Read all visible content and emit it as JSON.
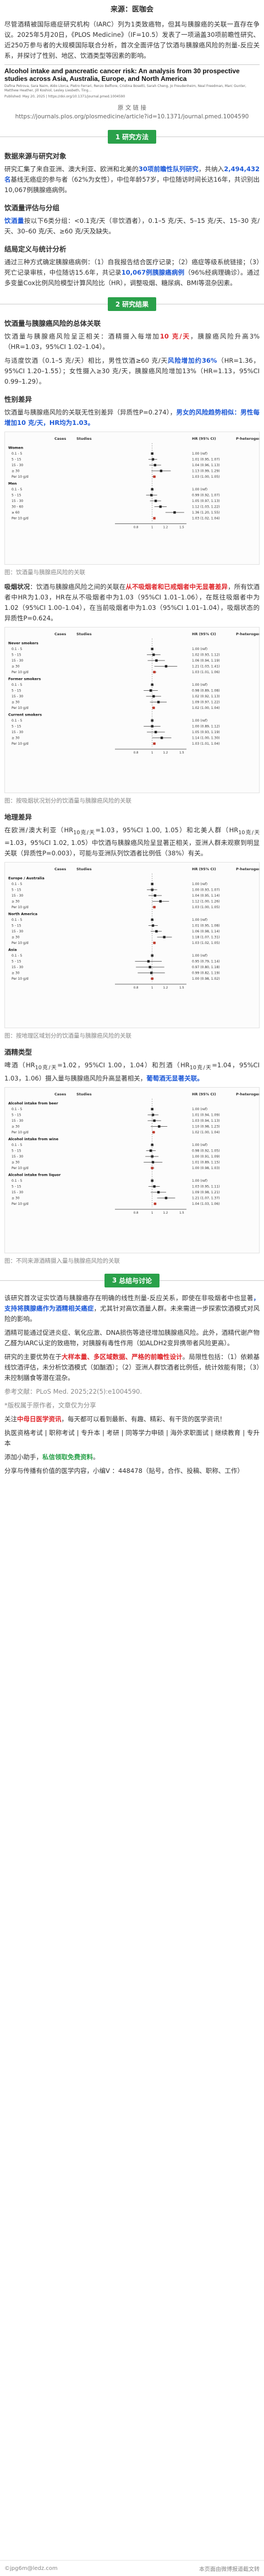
{
  "source": "来源：医咖会",
  "intro": "尽管酒精被国际癌症研究机构（IARC）列为1类致癌物，但其与胰腺癌的关联一直存在争议。2025年5月20日，《PLOS Medicine》（IF=10.5）发表了一项涵盖30项前瞻性研究、近250万参与者的大规模国际联合分析，首次全面评估了饮酒与胰腺癌风险的剂量-反应关系，并探讨了性别、地区、饮酒类型等因素的影响。",
  "paper": {
    "title": "Alcohol intake and pancreatic cancer risk: An analysis from 30 prospective studies across Asia, Australia, Europe, and North America",
    "authors": "Dafina Petrova, Sara Naim, Aldo Llorca, Pietro Ferrari, Renzo Belfiore, Cristina Bosetti, Sarah Cheng, Jo Freudenheim, Neal Freedman, Marc Gunter, Matthew Heather, Jill Koshiol, Lesley Liesbeth, Ting...",
    "published": "Published: May 20, 2025 | https://doi.org/10.1371/journal.pmed.1004590"
  },
  "citation": {
    "label": "原    文    链    接",
    "url": "https://journals.plos.org/plosmedicine/article?id=10.1371/journal.pmed.1004590"
  },
  "section1": {
    "num": "1",
    "title": "研究方法"
  },
  "methods": {
    "h1": "数据来源与研究对象",
    "p1a": "研究汇集了来自亚洲、澳大利亚、欧洲和北美的",
    "p1b": "30项前瞻性队列研究",
    "p1c": "，共纳入",
    "p1d": "2,494,432名",
    "p1e": "基线无癌症的参与者（62%为女性），中位年龄57岁，中位随访时间长达16年，共识别出10,067例胰腺癌病例。",
    "h2": "饮酒量评估与分组",
    "p2a": "饮酒量",
    "p2b": "按以下6类分组：",
    "p2c": "<0.1克/天（非饮酒者），0.1–5 克/天、5–15 克/天、15–30 克/天、30–60 克/天、≥60 克/天",
    "p2d": "及缺失。",
    "h3": "结局定义与统计分析",
    "p3a": "通过三种方式确定胰腺癌病例：（1）自我报告结合医疗记录；（2）癌症等级系统链接；（3）死亡记录审核，中位随访15.6年，共记录",
    "p3b": "10,067例胰腺癌病例",
    "p3c": "（96%经病理确诊）。通过多变量Cox比例风险模型计算风险比（HR），调整吸烟、糖尿病、BMI等混杂因素。"
  },
  "section2": {
    "num": "2",
    "title": "研究结果"
  },
  "results": {
    "h1": "饮酒量与胰腺癌风险的总体关联",
    "p1a": "饮酒量与胰腺癌风险呈正相关：酒精摄入每增加",
    "p1b": "10 克/天",
    "p1c": "，胰腺癌风险升高3%（HR=1.03，95%CI 1.02–1.04）。",
    "p2a": "与适度饮酒（0.1–5 克/天）相比，男性饮酒≥60 克/天",
    "p2b": "风险增加约36%",
    "p2c": "（HR=1.36，95%CI 1.20–1.55）；女性摄入≥30 克/天，胰腺癌风险增加13%（HR=1.13，95%CI 0.99–1.29）。",
    "h2": "性别差异",
    "p3a": "饮酒量与胰腺癌风险的关联无性别差异（异质性P=0.274），",
    "p3b": "男女的风险趋势相似：男性每增加10 克/天，HR均为1.03。",
    "fig1_caption": "图：饮酒量与胰腺癌风险的关联",
    "p4a": "吸烟状况",
    "p4b": "：饮酒与胰腺癌风险之间的关联在",
    "p4c": "从不吸烟者和已戒烟者中无显著差异",
    "p4d": "，所有饮酒者中HR为1.03，HR在从不吸烟者中为1.03（95%CI 1.01–1.06），在既往吸烟者中为1.02（95%CI 1.00–1.04），在当前吸烟者中为1.03（95%CI 1.01–1.04），吸烟状态的异质性P=0.624。",
    "fig2_caption": "图：按吸烟状况划分的饮酒量与胰腺癌风险的关联",
    "h3": "地理差异",
    "p5a": "在欧洲/澳大利亚（HR",
    "p5b": "10克/天",
    "p5c": "=1.03，95%CI 1.00, 1.05）和北美人群（HR",
    "p5d": "=1.03，95%CI 1.02, 1.05）中饮酒与胰腺癌风险呈显著正相关，亚洲人群未观察到明显关联（异质性P=0.003），可能与亚洲队列饮酒者比例低（38%）有关。",
    "fig3_caption": "图：按地理区域划分的饮酒量与胰腺癌风险的关联",
    "h4": "酒精类型",
    "p6a": "啤酒（HR",
    "p6b": "=1.02，95%CI 1.00，1.04）和烈酒（HR",
    "p6c": "=1.04，95%CI 1.03，1.06）摄入量与胰腺癌风险升高显著相关，",
    "p6d": "葡萄酒无显著关联。",
    "fig4_caption": "图：不同来源酒精摄入量与胰腺癌风险的关联"
  },
  "section3": {
    "num": "3",
    "title": "总结与讨论"
  },
  "discussion": {
    "p1a": "该研究首次证实饮酒与胰腺癌存在明确的线性剂量-反应关系，即使在非吸烟者中也显著",
    "p1b": "，支持将胰腺癌作为酒精相关癌症",
    "p1c": "，尤其针对高饮酒量人群。未来需进一步探索饮酒模式对风险的影响。",
    "p2": "酒精可能通过促进炎症、氧化应激、DNA损伤等途径增加胰腺癌风险。此外，酒精代谢产物乙醛为IARC认定的致癌物，对胰腺有毒性作用（如ALDH2变异携带者风险更高）。",
    "p3a": "研究的主要优势在于",
    "p3b": "大样本量、多区域数据、严格的前瞻性设计",
    "p3c": "。局限性包括：（1）依赖基线饮酒评估，未分析饮酒模式（如酗酒）；（2）亚洲人群饮酒者比例低，统计效能有限；（3）未控制膳食等潜在混杂。",
    "ref": "参考文献：PLoS Med. 2025;22(5):e1004590.",
    "notice": "*版权属于原作者，文章仅为分享",
    "follow1a": "关注",
    "follow1b": "中母日医学资讯",
    "follow1c": "，每天都可以看到最新、有趣、精彩、有干货的医学资讯！",
    "follow2": "执医资格考试 | 职称考试 | 专升本 | 考研 | 同等学力申硕 | 海外求职面试 | 继续教育 | 专升本",
    "follow3a": "添加小助手，",
    "follow3b": "私信领取免费资料",
    "follow3c": "。",
    "follow4": "分享与传播有价值的医学内容，小编V ：448478（贴号，合作、投稿、职称、工作）",
    "watermark_left": "©jpg6m@ledz.com",
    "watermark_right": "本页面由微博报道截文转"
  },
  "forest": {
    "fig1": {
      "header": [
        "",
        "Cases",
        "Studies",
        "HR (95% CI)",
        "P-heterogeneity"
      ],
      "groups": [
        {
          "name": "Women",
          "rows": [
            {
              "label": "0.1 - 5",
              "hr": "1.00 (ref)"
            },
            {
              "label": "5 - 15",
              "hr": "1.01 (0.95, 1.07)"
            },
            {
              "label": "15 - 30",
              "hr": "1.04 (0.96, 1.13)"
            },
            {
              "label": "≥ 30",
              "hr": "1.13 (0.99, 1.29)"
            },
            {
              "label": "Per 10 g/d",
              "hr": "1.03 (1.00, 1.05)"
            }
          ]
        },
        {
          "name": "Men",
          "rows": [
            {
              "label": "0.1 - 5",
              "hr": "1.00 (ref)"
            },
            {
              "label": "5 - 15",
              "hr": "0.99 (0.92, 1.07)"
            },
            {
              "label": "15 - 30",
              "hr": "1.05 (0.97, 1.13)"
            },
            {
              "label": "30 - 60",
              "hr": "1.12 (1.03, 1.22)"
            },
            {
              "label": "≥ 60",
              "hr": "1.36 (1.20, 1.55)"
            },
            {
              "label": "Per 10 g/d",
              "hr": "1.03 (1.02, 1.04)"
            }
          ]
        }
      ]
    },
    "fig2": {
      "groups": [
        {
          "name": "Never smokers",
          "rows": [
            {
              "label": "0.1 - 5",
              "hr": "1.00 (ref)"
            },
            {
              "label": "5 - 15",
              "hr": "1.02 (0.93, 1.12)"
            },
            {
              "label": "15 - 30",
              "hr": "1.06 (0.94, 1.19)"
            },
            {
              "label": "≥ 30",
              "hr": "1.21 (1.03, 1.41)"
            },
            {
              "label": "Per 10 g/d",
              "hr": "1.03 (1.01, 1.06)"
            }
          ]
        },
        {
          "name": "Former smokers",
          "rows": [
            {
              "label": "0.1 - 5",
              "hr": "1.00 (ref)"
            },
            {
              "label": "5 - 15",
              "hr": "0.98 (0.89, 1.08)"
            },
            {
              "label": "15 - 30",
              "hr": "1.02 (0.92, 1.13)"
            },
            {
              "label": "≥ 30",
              "hr": "1.09 (0.97, 1.22)"
            },
            {
              "label": "Per 10 g/d",
              "hr": "1.02 (1.00, 1.04)"
            }
          ]
        },
        {
          "name": "Current smokers",
          "rows": [
            {
              "label": "0.1 - 5",
              "hr": "1.00 (ref)"
            },
            {
              "label": "5 - 15",
              "hr": "1.00 (0.89, 1.12)"
            },
            {
              "label": "15 - 30",
              "hr": "1.05 (0.93, 1.19)"
            },
            {
              "label": "≥ 30",
              "hr": "1.14 (1.00, 1.30)"
            },
            {
              "label": "Per 10 g/d",
              "hr": "1.03 (1.01, 1.04)"
            }
          ]
        }
      ]
    },
    "fig3": {
      "groups": [
        {
          "name": "Europe / Australia",
          "rows": [
            {
              "label": "0.1 - 5",
              "hr": "1.00 (ref)"
            },
            {
              "label": "5 - 15",
              "hr": "1.00 (0.93, 1.07)"
            },
            {
              "label": "15 - 30",
              "hr": "1.04 (0.95, 1.14)"
            },
            {
              "label": "≥ 30",
              "hr": "1.12 (1.00, 1.26)"
            },
            {
              "label": "Per 10 g/d",
              "hr": "1.03 (1.00, 1.05)"
            }
          ]
        },
        {
          "name": "North America",
          "rows": [
            {
              "label": "0.1 - 5",
              "hr": "1.00 (ref)"
            },
            {
              "label": "5 - 15",
              "hr": "1.01 (0.95, 1.08)"
            },
            {
              "label": "15 - 30",
              "hr": "1.06 (0.98, 1.14)"
            },
            {
              "label": "≥ 30",
              "hr": "1.18 (1.07, 1.31)"
            },
            {
              "label": "Per 10 g/d",
              "hr": "1.03 (1.02, 1.05)"
            }
          ]
        },
        {
          "name": "Asia",
          "rows": [
            {
              "label": "0.1 - 5",
              "hr": "1.00 (ref)"
            },
            {
              "label": "5 - 15",
              "hr": "0.95 (0.79, 1.14)"
            },
            {
              "label": "15 - 30",
              "hr": "0.97 (0.80, 1.18)"
            },
            {
              "label": "≥ 30",
              "hr": "0.99 (0.82, 1.19)"
            },
            {
              "label": "Per 10 g/d",
              "hr": "1.00 (0.98, 1.02)"
            }
          ]
        }
      ]
    },
    "fig4": {
      "groups": [
        {
          "name": "Alcohol intake from beer",
          "rows": [
            {
              "label": "0.1 - 5",
              "hr": "1.00 (ref)"
            },
            {
              "label": "5 - 15",
              "hr": "1.01 (0.94, 1.09)"
            },
            {
              "label": "15 - 30",
              "hr": "1.03 (0.94, 1.13)"
            },
            {
              "label": "≥ 30",
              "hr": "1.10 (0.98, 1.23)"
            },
            {
              "label": "Per 10 g/d",
              "hr": "1.02 (1.00, 1.04)"
            }
          ]
        },
        {
          "name": "Alcohol intake from wine",
          "rows": [
            {
              "label": "0.1 - 5",
              "hr": "1.00 (ref)"
            },
            {
              "label": "5 - 15",
              "hr": "0.98 (0.92, 1.05)"
            },
            {
              "label": "15 - 30",
              "hr": "1.00 (0.91, 1.09)"
            },
            {
              "label": "≥ 30",
              "hr": "1.01 (0.89, 1.15)"
            },
            {
              "label": "Per 10 g/d",
              "hr": "1.00 (0.98, 1.03)"
            }
          ]
        },
        {
          "name": "Alcohol intake from liquor",
          "rows": [
            {
              "label": "0.1 - 5",
              "hr": "1.00 (ref)"
            },
            {
              "label": "5 - 15",
              "hr": "1.03 (0.95, 1.11)"
            },
            {
              "label": "15 - 30",
              "hr": "1.09 (0.98, 1.21)"
            },
            {
              "label": "≥ 30",
              "hr": "1.21 (1.07, 1.37)"
            },
            {
              "label": "Per 10 g/d",
              "hr": "1.04 (1.03, 1.06)"
            }
          ]
        }
      ]
    }
  }
}
